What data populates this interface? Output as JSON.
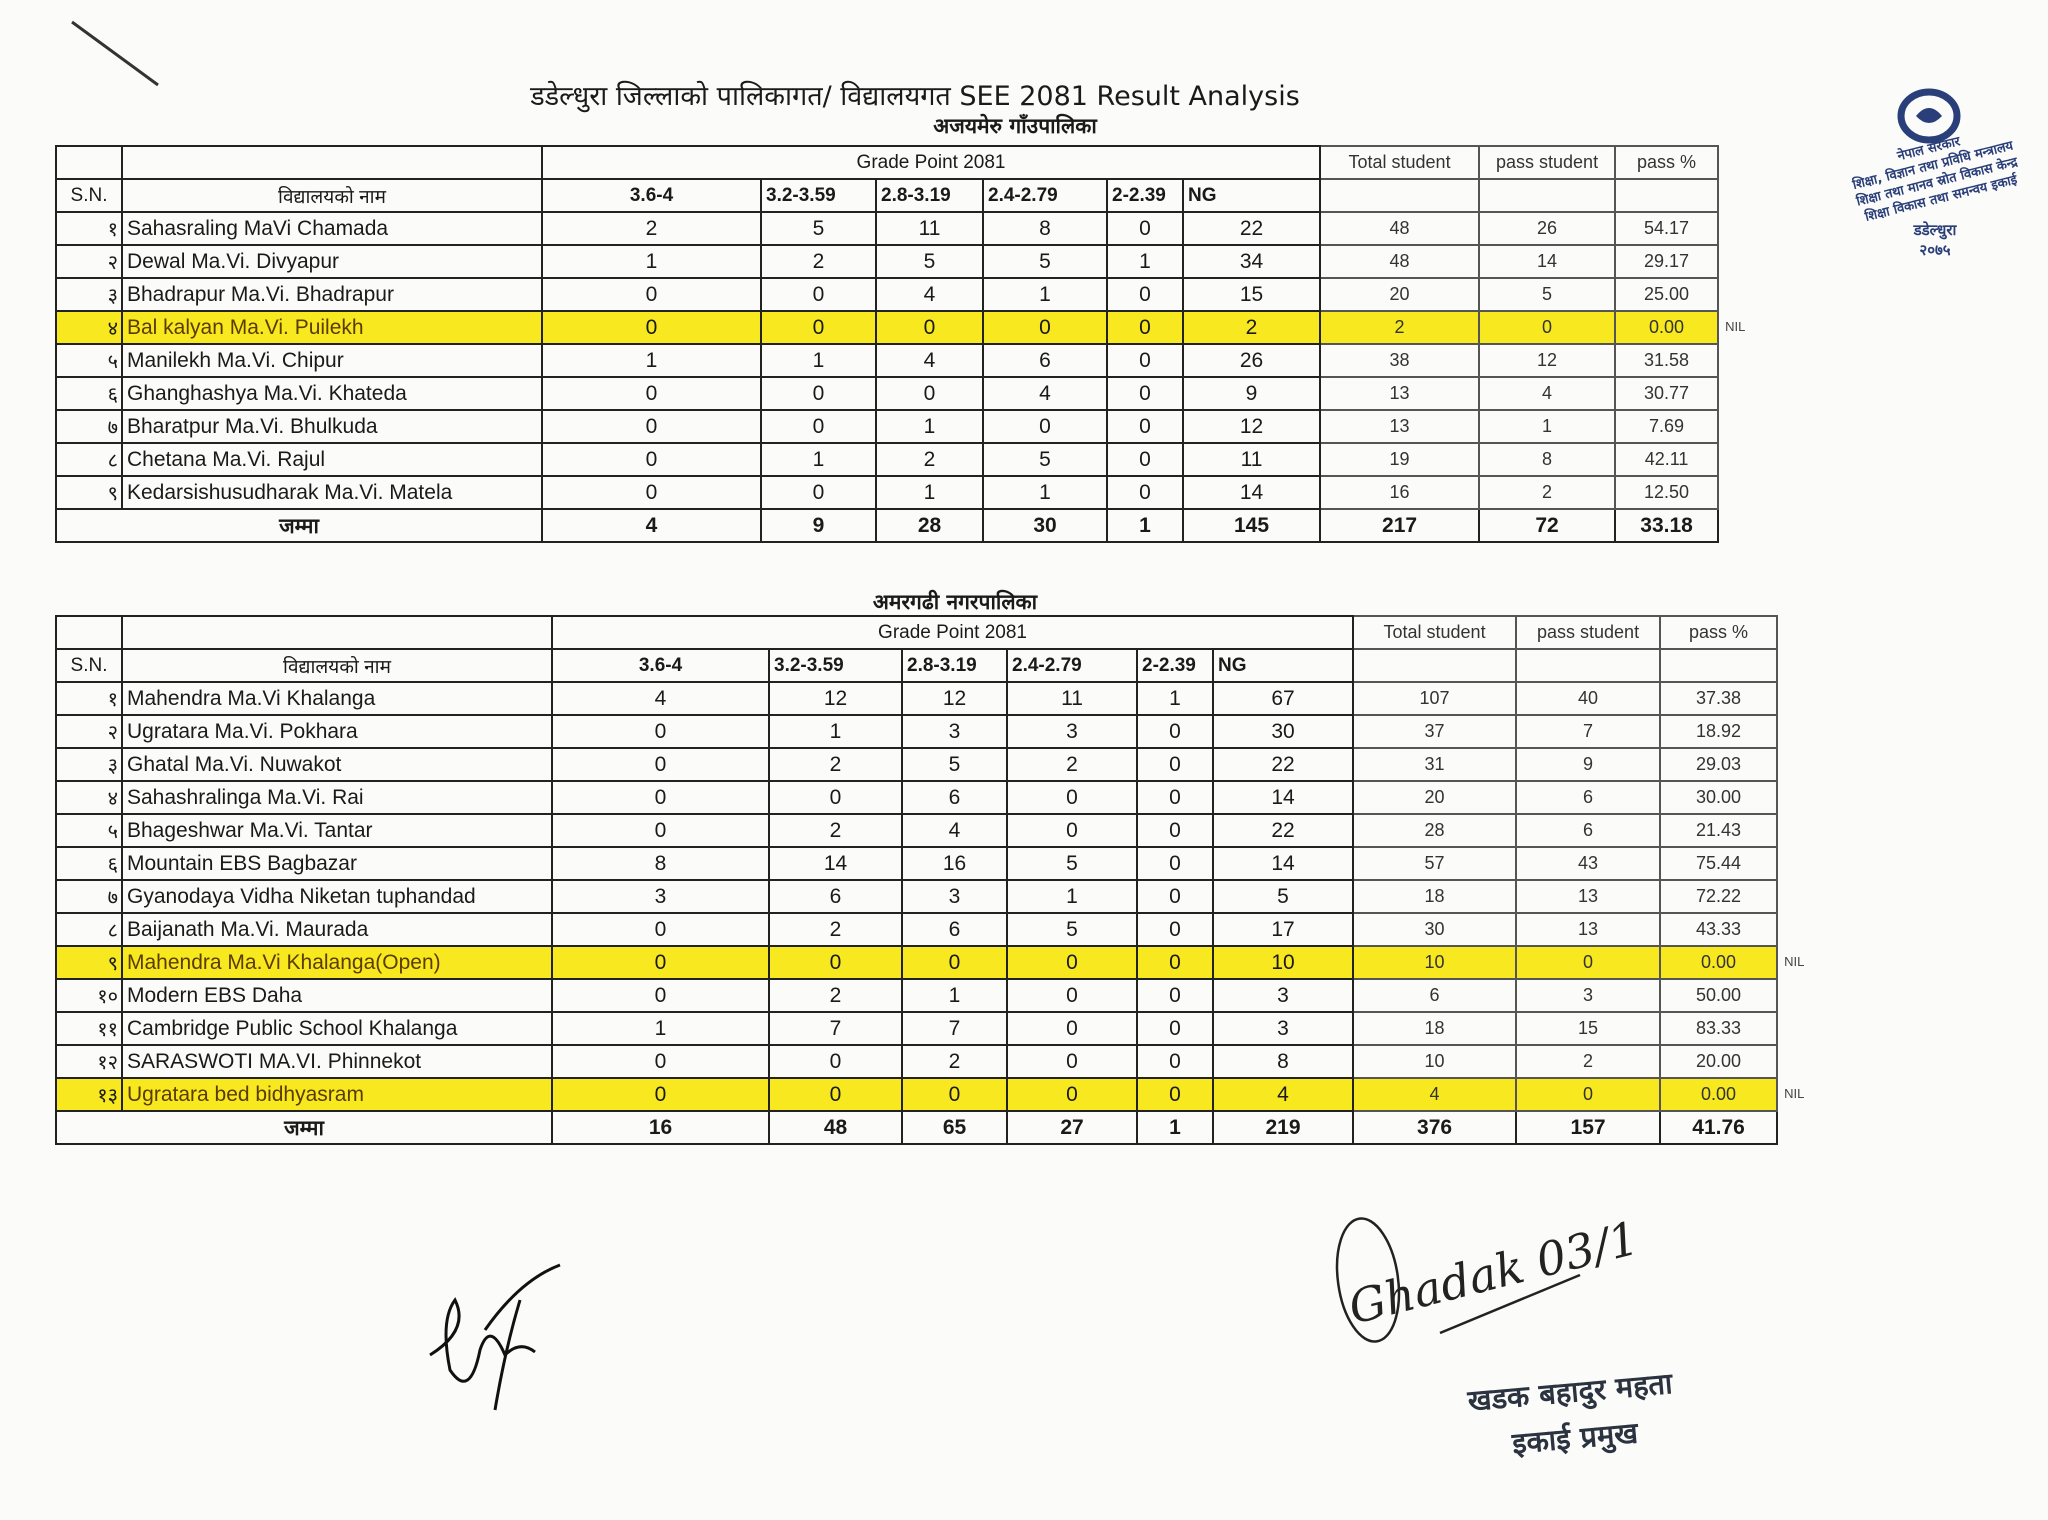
{
  "document": {
    "title": "डडेल्धुरा जिल्लाको पालिकागत/ विद्यालयगत SEE 2081 Result  Analysis",
    "nil_label": "NIL",
    "highlight_color": "#f7e81f"
  },
  "headers": {
    "sn": "S.N.",
    "school_name": "विद्यालयको नाम",
    "grade_point": "Grade Point   2081",
    "ranges": [
      "3.6-4",
      "3.2-3.59",
      "2.8-3.19",
      "2.4-2.79",
      "2-2.39",
      "NG"
    ],
    "total_student": "Total student",
    "pass_student": "pass  student",
    "pass_pct": "pass %",
    "total_label": "जम्मा"
  },
  "tables": [
    {
      "municipality": "अजयमेरु गाँउपालिका",
      "rows": [
        {
          "sn": "१",
          "name": "Sahasraling MaVi Chamada",
          "values": [
            "2",
            "5",
            "11",
            "8",
            "0",
            "22",
            "48",
            "26",
            "54.17"
          ],
          "highlight": false
        },
        {
          "sn": "२",
          "name": "Dewal Ma.Vi. Divyapur",
          "values": [
            "1",
            "2",
            "5",
            "5",
            "1",
            "34",
            "48",
            "14",
            "29.17"
          ],
          "highlight": false
        },
        {
          "sn": "३",
          "name": "Bhadrapur Ma.Vi. Bhadrapur",
          "values": [
            "0",
            "0",
            "4",
            "1",
            "0",
            "15",
            "20",
            "5",
            "25.00"
          ],
          "highlight": false
        },
        {
          "sn": "४",
          "name": "Bal kalyan Ma.Vi. Puilekh",
          "values": [
            "0",
            "0",
            "0",
            "0",
            "0",
            "2",
            "2",
            "0",
            "0.00"
          ],
          "highlight": true,
          "note": "NIL"
        },
        {
          "sn": "५",
          "name": "Manilekh Ma.Vi. Chipur",
          "values": [
            "1",
            "1",
            "4",
            "6",
            "0",
            "26",
            "38",
            "12",
            "31.58"
          ],
          "highlight": false
        },
        {
          "sn": "६",
          "name": "Ghanghashya Ma.Vi. Khateda",
          "values": [
            "0",
            "0",
            "0",
            "4",
            "0",
            "9",
            "13",
            "4",
            "30.77"
          ],
          "highlight": false
        },
        {
          "sn": "७",
          "name": "Bharatpur Ma.Vi. Bhulkuda",
          "values": [
            "0",
            "0",
            "1",
            "0",
            "0",
            "12",
            "13",
            "1",
            "7.69"
          ],
          "highlight": false
        },
        {
          "sn": "८",
          "name": "Chetana Ma.Vi. Rajul",
          "values": [
            "0",
            "1",
            "2",
            "5",
            "0",
            "11",
            "19",
            "8",
            "42.11"
          ],
          "highlight": false
        },
        {
          "sn": "९",
          "name": "Kedarsishusudharak  Ma.Vi. Matela",
          "values": [
            "0",
            "0",
            "1",
            "1",
            "0",
            "14",
            "16",
            "2",
            "12.50"
          ],
          "highlight": false
        }
      ],
      "totals": [
        "4",
        "9",
        "28",
        "30",
        "1",
        "145",
        "217",
        "72",
        "33.18"
      ]
    },
    {
      "municipality": "अमरगढी नगरपालिका",
      "rows": [
        {
          "sn": "१",
          "name": "Mahendra  Ma.Vi Khalanga",
          "values": [
            "4",
            "12",
            "12",
            "11",
            "1",
            "67",
            "107",
            "40",
            "37.38"
          ],
          "highlight": false
        },
        {
          "sn": "२",
          "name": "Ugratara Ma.Vi. Pokhara",
          "values": [
            "0",
            "1",
            "3",
            "3",
            "0",
            "30",
            "37",
            "7",
            "18.92"
          ],
          "highlight": false
        },
        {
          "sn": "३",
          "name": "Ghatal Ma.Vi. Nuwakot",
          "values": [
            "0",
            "2",
            "5",
            "2",
            "0",
            "22",
            "31",
            "9",
            "29.03"
          ],
          "highlight": false
        },
        {
          "sn": "४",
          "name": "Sahashralinga Ma.Vi. Rai",
          "values": [
            "0",
            "0",
            "6",
            "0",
            "0",
            "14",
            "20",
            "6",
            "30.00"
          ],
          "highlight": false
        },
        {
          "sn": "५",
          "name": "Bhageshwar Ma.Vi. Tantar",
          "values": [
            "0",
            "2",
            "4",
            "0",
            "0",
            "22",
            "28",
            "6",
            "21.43"
          ],
          "highlight": false
        },
        {
          "sn": "६",
          "name": "Mountain EBS Bagbazar",
          "values": [
            "8",
            "14",
            "16",
            "5",
            "0",
            "14",
            "57",
            "43",
            "75.44"
          ],
          "highlight": false
        },
        {
          "sn": "७",
          "name": "Gyanodaya Vidha Niketan tuphandad",
          "values": [
            "3",
            "6",
            "3",
            "1",
            "0",
            "5",
            "18",
            "13",
            "72.22"
          ],
          "highlight": false
        },
        {
          "sn": "८",
          "name": "Baijanath Ma.Vi. Maurada",
          "values": [
            "0",
            "2",
            "6",
            "5",
            "0",
            "17",
            "30",
            "13",
            "43.33"
          ],
          "highlight": false
        },
        {
          "sn": "९",
          "name": "Mahendra  Ma.Vi Khalanga(Open)",
          "values": [
            "0",
            "0",
            "0",
            "0",
            "0",
            "10",
            "10",
            "0",
            "0.00"
          ],
          "highlight": true,
          "note": "NIL"
        },
        {
          "sn": "१०",
          "name": "Modern EBS Daha",
          "values": [
            "0",
            "2",
            "1",
            "0",
            "0",
            "3",
            "6",
            "3",
            "50.00"
          ],
          "highlight": false
        },
        {
          "sn": "११",
          "name": "Cambridge Public School Khalanga",
          "values": [
            "1",
            "7",
            "7",
            "0",
            "0",
            "3",
            "18",
            "15",
            "83.33"
          ],
          "highlight": false
        },
        {
          "sn": "१२",
          "name": "SARASWOTI MA.VI. Phinnekot",
          "values": [
            "0",
            "0",
            "2",
            "0",
            "0",
            "8",
            "10",
            "2",
            "20.00"
          ],
          "highlight": false
        },
        {
          "sn": "१३",
          "name": "Ugratara bed bidhyasram",
          "values": [
            "0",
            "0",
            "0",
            "0",
            "0",
            "4",
            "4",
            "0",
            "0.00"
          ],
          "highlight": true,
          "note": "NIL"
        }
      ],
      "totals": [
        "16",
        "48",
        "65",
        "27",
        "1",
        "219",
        "376",
        "157",
        "41.76"
      ]
    }
  ],
  "stamp": {
    "lines": [
      "नेपाल सरकार",
      "शिक्षा, विज्ञान तथा प्रविधि मन्त्रालय",
      "शिक्षा तथा मानव स्रोत विकास केन्द्र",
      "शिक्षा विकास तथा समन्वय इकाई",
      "डडेल्धुरा",
      "२०७५"
    ],
    "color": "#2a3f7a"
  },
  "signatures": {
    "right_handwriting": "Ghadak 03/15",
    "signatory_name": "खडक बहादुर महता",
    "signatory_title": "इकाई प्रमुख"
  }
}
